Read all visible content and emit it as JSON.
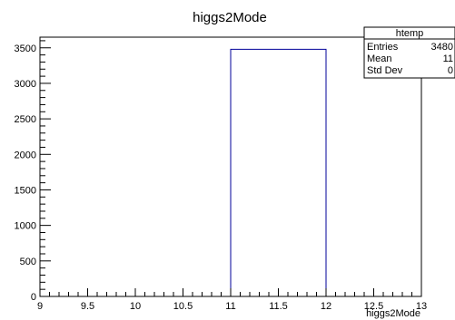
{
  "chart_data": {
    "type": "bar",
    "title": "higgs2Mode",
    "xlabel": "higgs2Mode",
    "ylabel": "",
    "xlim": [
      9,
      13
    ],
    "ylim": [
      0,
      3650
    ],
    "x_ticks": [
      "9",
      "9.5",
      "10",
      "10.5",
      "11",
      "11.5",
      "12",
      "12.5",
      "13"
    ],
    "y_ticks": [
      "0",
      "500",
      "1000",
      "1500",
      "2000",
      "2500",
      "3000",
      "3500"
    ],
    "bins": [
      {
        "low": 11,
        "high": 12,
        "value": 3480
      }
    ],
    "grid": false,
    "bar_color": "#000099",
    "stats_box": {
      "name": "htemp",
      "rows": [
        {
          "label": "Entries",
          "value": "3480"
        },
        {
          "label": "Mean",
          "value": "11"
        },
        {
          "label": "Std Dev",
          "value": "0"
        }
      ]
    }
  }
}
